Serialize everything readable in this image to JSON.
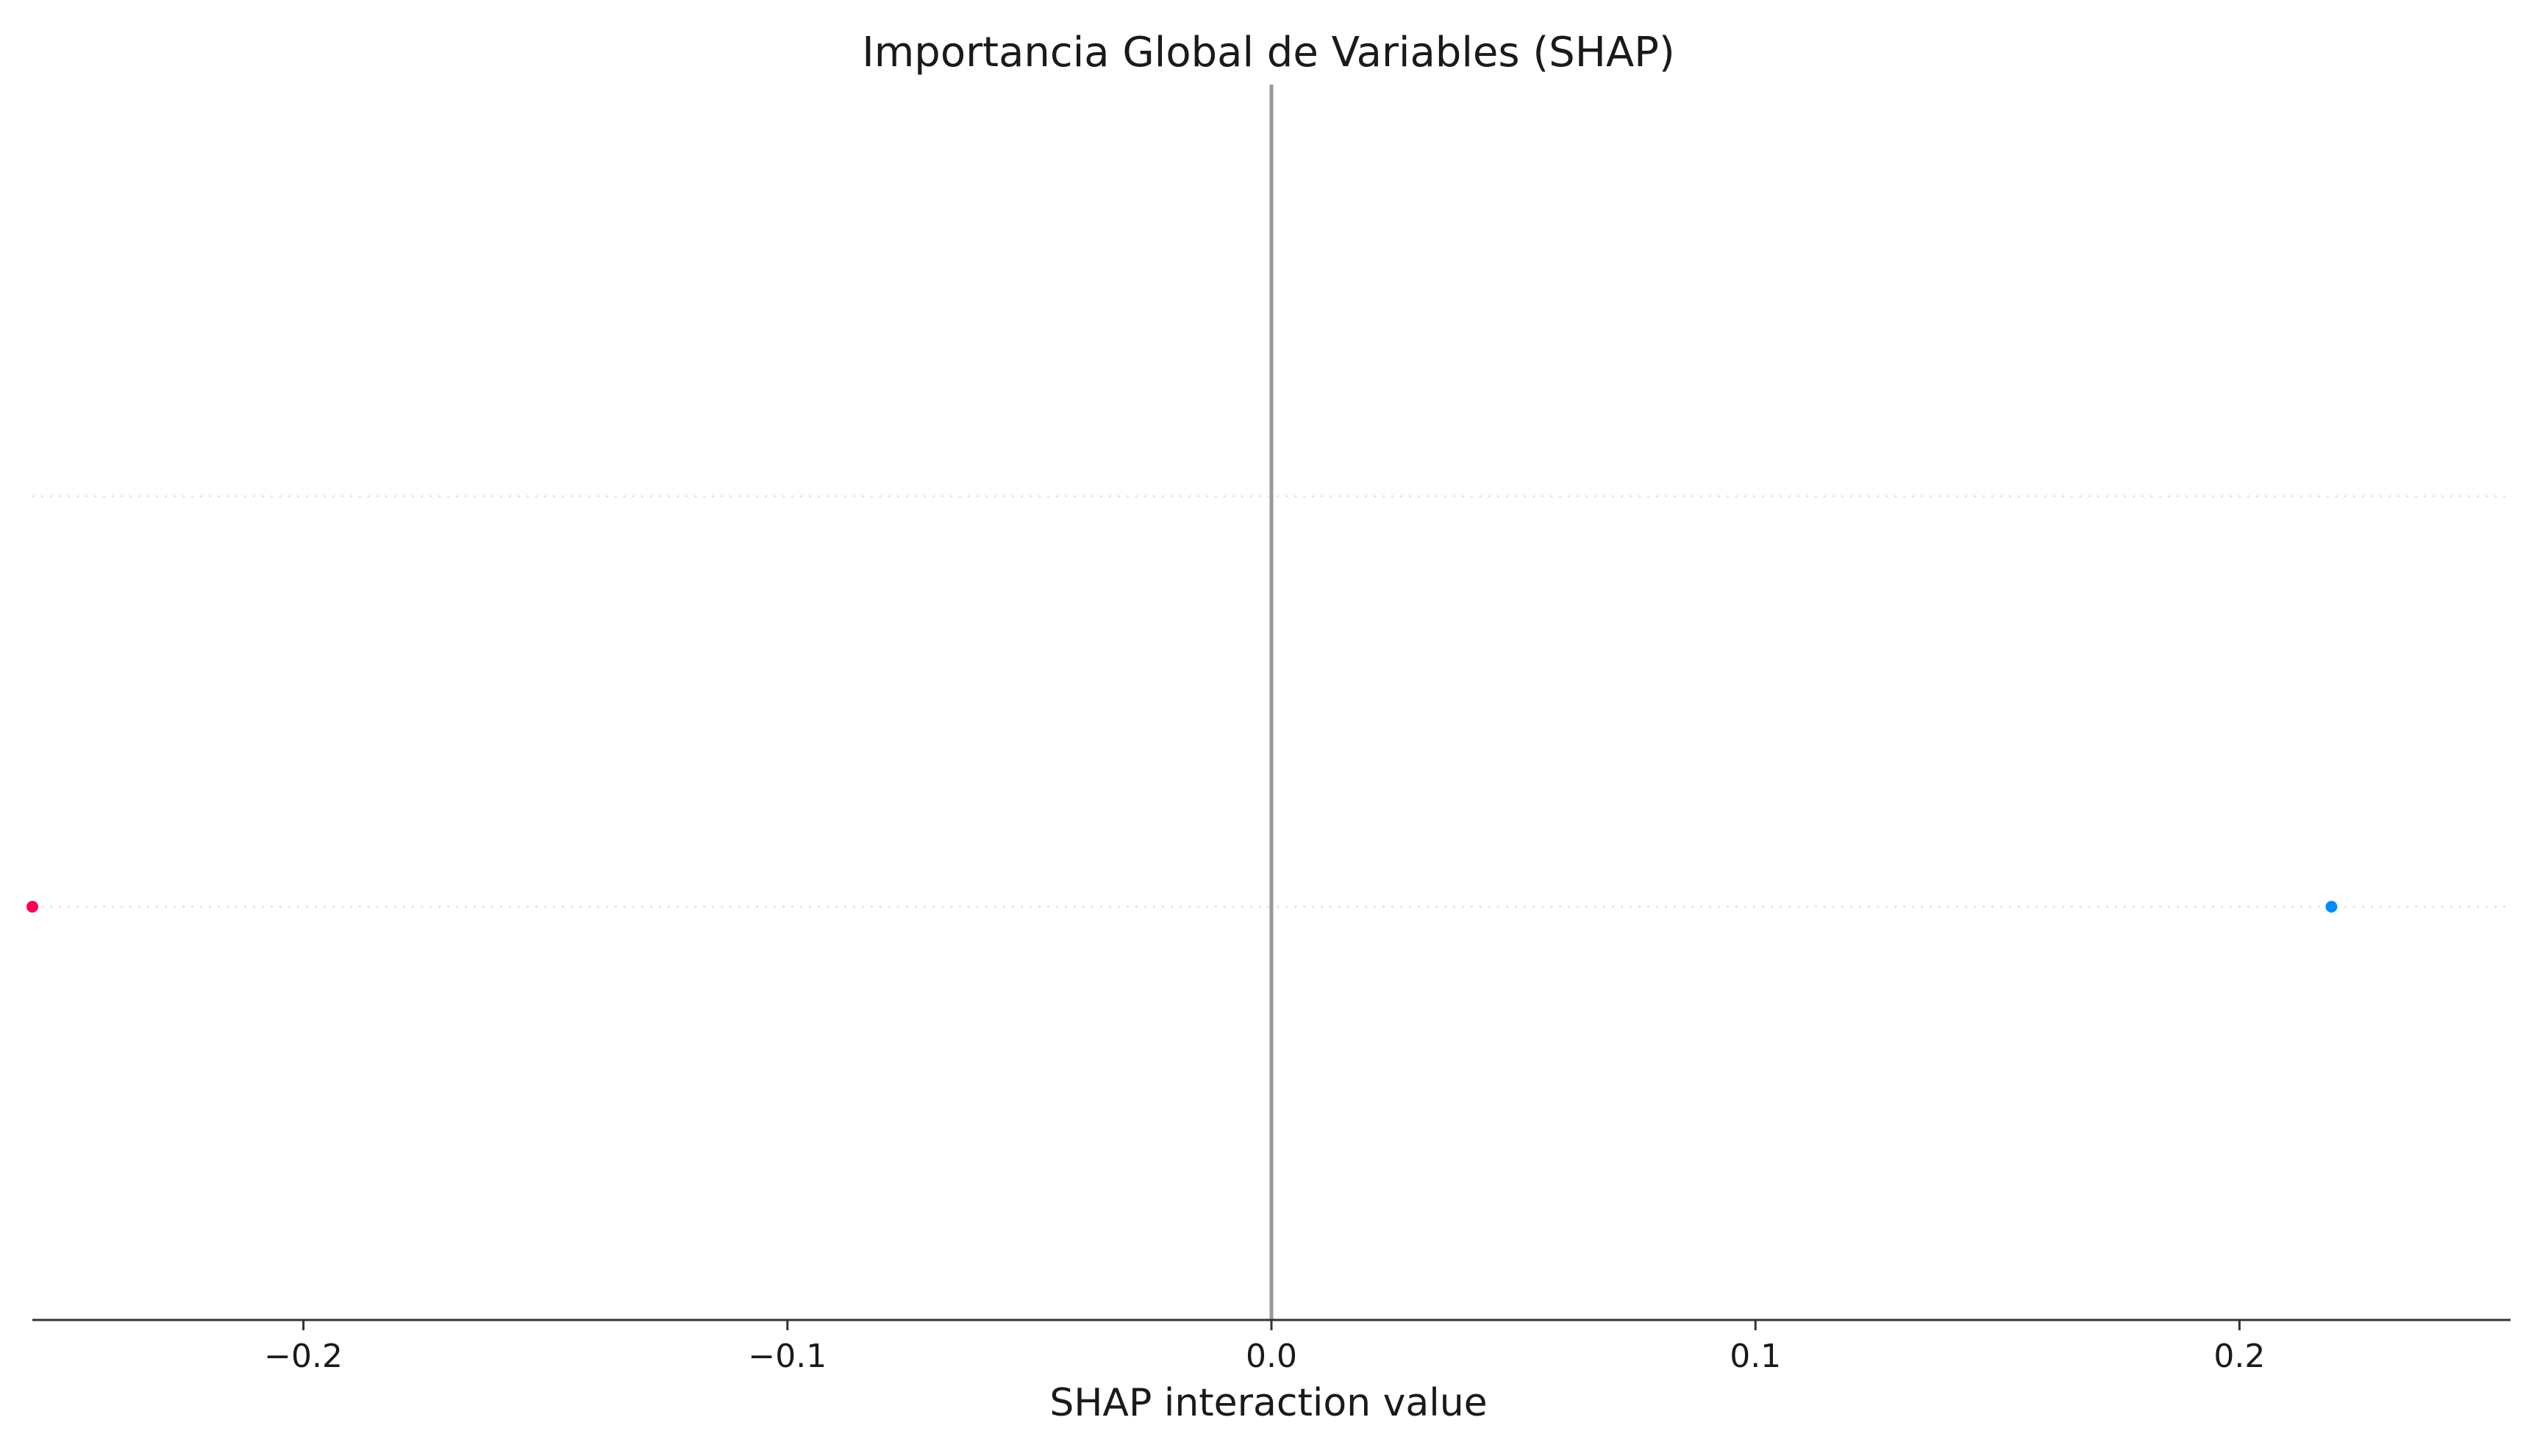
{
  "colors": {
    "negative_point": "#ff0051",
    "positive_point": "#008bfb",
    "zero_line": "#999999",
    "axis": "#333333",
    "row_gridline": "#e6e6e6"
  },
  "chart_data": {
    "type": "scatter",
    "title": "Importancia Global de Variables (SHAP)",
    "xlabel": "SHAP interaction value",
    "ylabel": "",
    "xlim": [
      -0.256,
      0.256
    ],
    "xticks": [
      -0.2,
      -0.1,
      0.0,
      0.1,
      0.2
    ],
    "xtick_labels": [
      "−0.2",
      "−0.1",
      "0.0",
      "0.1",
      "0.2"
    ],
    "rows": 2,
    "grid": "dotted horizontal row lines",
    "points": [
      {
        "x": -0.256,
        "row": 0,
        "color": "#ff0051"
      },
      {
        "x": 0.219,
        "row": 0,
        "color": "#008bfb"
      }
    ]
  }
}
